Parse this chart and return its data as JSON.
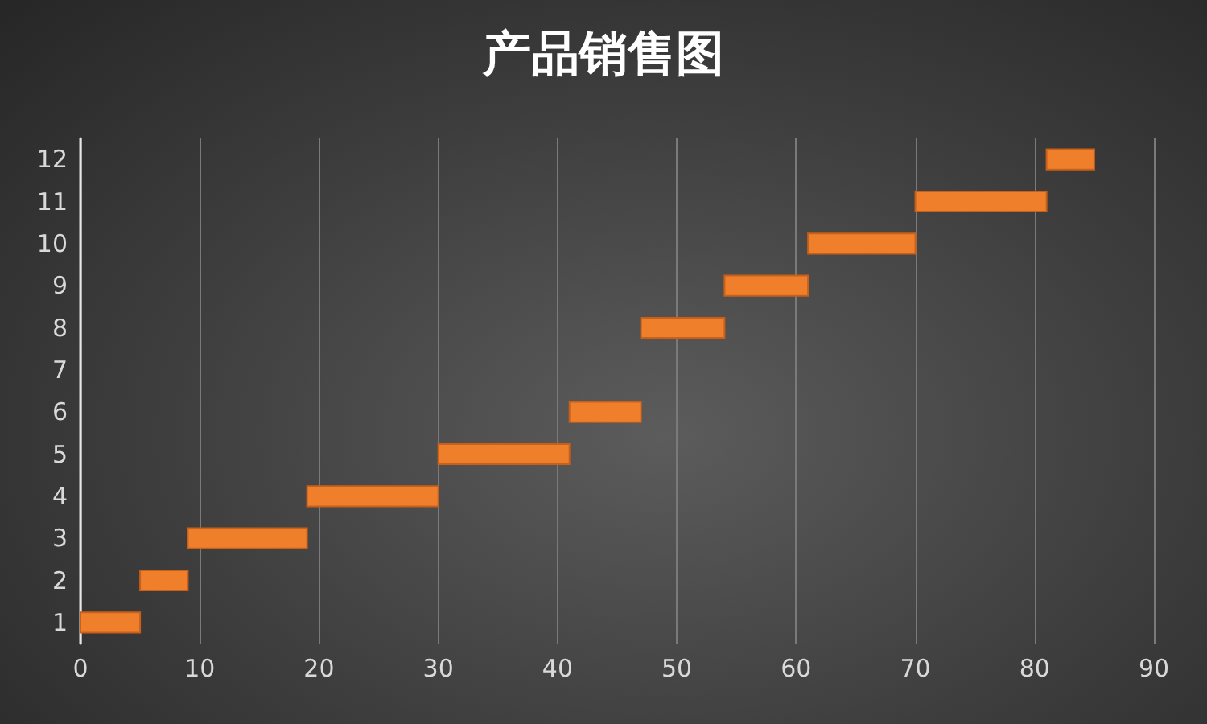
{
  "chart_data": {
    "type": "bar",
    "orientation": "horizontal",
    "title": "产品销售图",
    "categories": [
      "12",
      "11",
      "10",
      "9",
      "8",
      "7",
      "6",
      "5",
      "4",
      "3",
      "2",
      "1"
    ],
    "base": [
      81,
      70,
      61,
      54,
      47,
      null,
      41,
      30,
      19,
      9,
      5,
      0
    ],
    "values": [
      4,
      11,
      9,
      7,
      7,
      null,
      6,
      11,
      11,
      10,
      4,
      5
    ],
    "color": "#f07f2c",
    "xlim": [
      0,
      90
    ],
    "xticks": [
      0,
      10,
      20,
      30,
      40,
      50,
      60,
      70,
      80,
      90
    ],
    "grid": "x"
  }
}
